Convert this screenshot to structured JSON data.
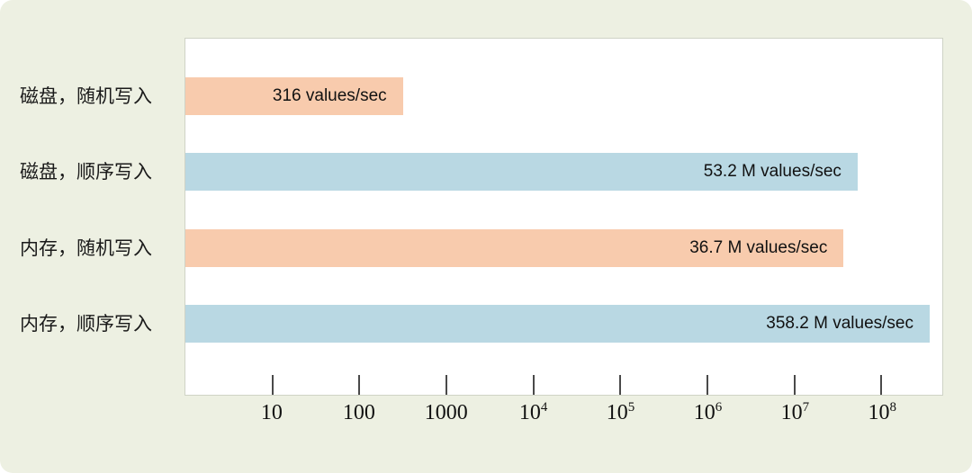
{
  "chart_data": {
    "type": "bar",
    "orientation": "horizontal",
    "x_scale": "log",
    "xlim": [
      1,
      500000000
    ],
    "grid": false,
    "legend": false,
    "title": "",
    "xlabel": "",
    "ylabel": "",
    "categories": [
      "磁盘，随机写入",
      "磁盘，顺序写入",
      "内存，随机写入",
      "内存，顺序写入"
    ],
    "values": [
      316,
      53200000,
      36700000,
      358200000
    ],
    "value_labels": [
      "316 values/sec",
      "53.2 M values/sec",
      "36.7 M values/sec",
      "358.2 M values/sec"
    ],
    "bar_colors": [
      "#f8cbad",
      "#b9d8e3",
      "#f8cbad",
      "#b9d8e3"
    ],
    "x_ticks": [
      10,
      100,
      1000,
      10000,
      100000,
      1000000,
      10000000,
      100000000
    ],
    "x_tick_labels": [
      {
        "text": "10",
        "sup": ""
      },
      {
        "text": "100",
        "sup": ""
      },
      {
        "text": "1000",
        "sup": ""
      },
      {
        "text": "10",
        "sup": "4"
      },
      {
        "text": "10",
        "sup": "5"
      },
      {
        "text": "10",
        "sup": "6"
      },
      {
        "text": "10",
        "sup": "7"
      },
      {
        "text": "10",
        "sup": "8"
      }
    ]
  },
  "colors": {
    "background": "#edf0e2",
    "plot_background": "#ffffff",
    "plot_border": "#cfd3c6",
    "tick_color": "#4a4a4a",
    "text": "#1a1a1a"
  }
}
